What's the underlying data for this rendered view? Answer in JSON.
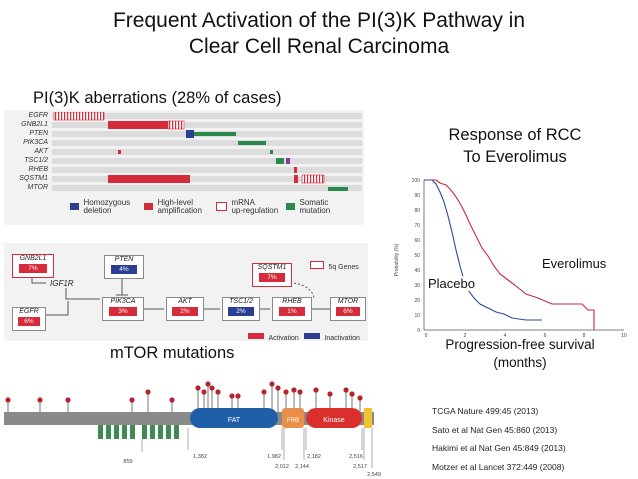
{
  "slide": {
    "title_line1": "Frequent Activation of the PI(3)K Pathway in",
    "title_line2": "Clear Cell Renal Carcinoma"
  },
  "oncoprint": {
    "heading": "PI(3)K aberrations (28% of cases)",
    "genes": [
      "EGFR",
      "GNB2L1",
      "PTEN",
      "PIK3CA",
      "AKT",
      "TSC1/2",
      "RHEB",
      "SQSTM1",
      "MTOR"
    ],
    "legend": [
      {
        "label": "Homozygous\ndeletion",
        "color": "#2b3e91"
      },
      {
        "label": "High-level\namplification",
        "color": "#d62b3a"
      },
      {
        "label": "mRNA\nup-regulation",
        "color": "#d62b3a"
      },
      {
        "label": "Somatic\nmutation",
        "color": "#2a8a4a"
      }
    ]
  },
  "pathway": {
    "nodes": [
      {
        "name": "GNB2L1",
        "value": "7%"
      },
      {
        "name": "IGF1R",
        "value": ""
      },
      {
        "name": "EGFR",
        "value": "6%"
      },
      {
        "name": "PTEN",
        "value": "4%"
      },
      {
        "name": "PIK3CA",
        "value": "3%"
      },
      {
        "name": "AKT",
        "value": "2%"
      },
      {
        "name": "TSC1/2",
        "value": "2%"
      },
      {
        "name": "SQSTM1",
        "value": "7%"
      },
      {
        "name": "RHEB",
        "value": "1%"
      },
      {
        "name": "MTOR",
        "value": "6%"
      }
    ],
    "legend_5q": "5q Genes",
    "legend_activation": "Activation",
    "legend_inactivation": "Inactivation",
    "colors": {
      "activation": "#d62b3a",
      "inactivation": "#2b3e91"
    }
  },
  "km": {
    "title_line1": "Response of RCC",
    "title_line2": "To Everolimus",
    "ylabel": "Probability (%)",
    "yticks": [
      "100",
      "90",
      "80",
      "70",
      "60",
      "50",
      "40",
      "30",
      "20",
      "10",
      "0"
    ],
    "xticks": [
      "0",
      "2",
      "4",
      "6",
      "8",
      "10"
    ],
    "everolimus_label": "Everolimus",
    "placebo_label": "Placebo",
    "xlabel_line1": "Progression-free survival",
    "xlabel_line2": "(months)",
    "colors": {
      "everolimus": "#c8283a",
      "placebo": "#2b4a9a"
    }
  },
  "mtor": {
    "heading": "mTOR mutations",
    "domains": [
      {
        "name": "FAT",
        "color": "#1f5fa8"
      },
      {
        "name": "FRB",
        "color": "#e8904a"
      },
      {
        "name": "Kinase",
        "color": "#d9302e"
      }
    ],
    "positions": [
      "859",
      "1,382",
      "1,982",
      "2,012",
      "2,144",
      "2,182",
      "2,516",
      "2,517",
      "2,549"
    ]
  },
  "references": [
    "TCGA Nature 499:45 (2013)",
    "Sato et al Nat Gen 45:860 (2013)",
    "Hakimi et al Nat Gen 45:849 (2013)",
    "Motzer et al Lancet 372:449 (2008)"
  ]
}
